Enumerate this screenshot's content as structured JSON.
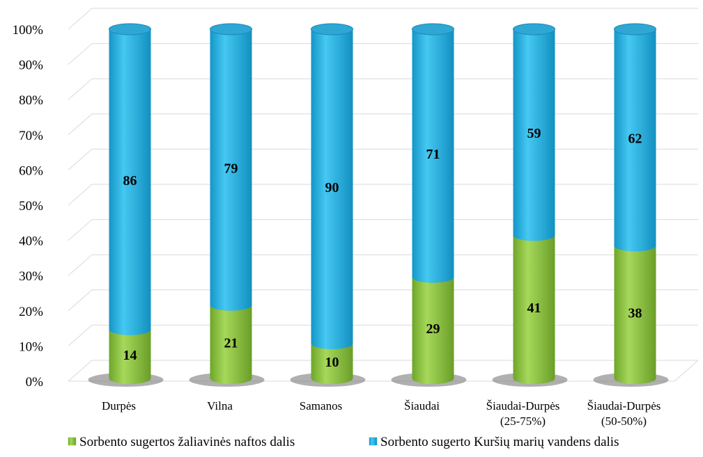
{
  "chart_data": {
    "type": "bar",
    "stacked": true,
    "percent": true,
    "style": "3d-cylinder",
    "title": "",
    "xlabel": "",
    "ylabel": "",
    "ylim": [
      0,
      100
    ],
    "grid": true,
    "legend_position": "bottom",
    "y_ticks": [
      "0%",
      "10%",
      "20%",
      "30%",
      "40%",
      "50%",
      "60%",
      "70%",
      "80%",
      "90%",
      "100%"
    ],
    "categories": [
      [
        "Durpės"
      ],
      [
        "Vilna"
      ],
      [
        "Samanos"
      ],
      [
        "Šiaudai"
      ],
      [
        "Šiaudai-Durpės",
        "(25-75%)"
      ],
      [
        "Šiaudai-Durpės",
        "(50-50%)"
      ]
    ],
    "series": [
      {
        "name": "Sorbento sugertos žaliavinės naftos dalis",
        "values": [
          14,
          21,
          10,
          29,
          41,
          38
        ],
        "color": "#8dc63f"
      },
      {
        "name": "Sorbento sugerto Kuršių marių vandens dalis",
        "values": [
          86,
          79,
          90,
          71,
          59,
          62
        ],
        "color": "#1fb3e5"
      }
    ]
  }
}
